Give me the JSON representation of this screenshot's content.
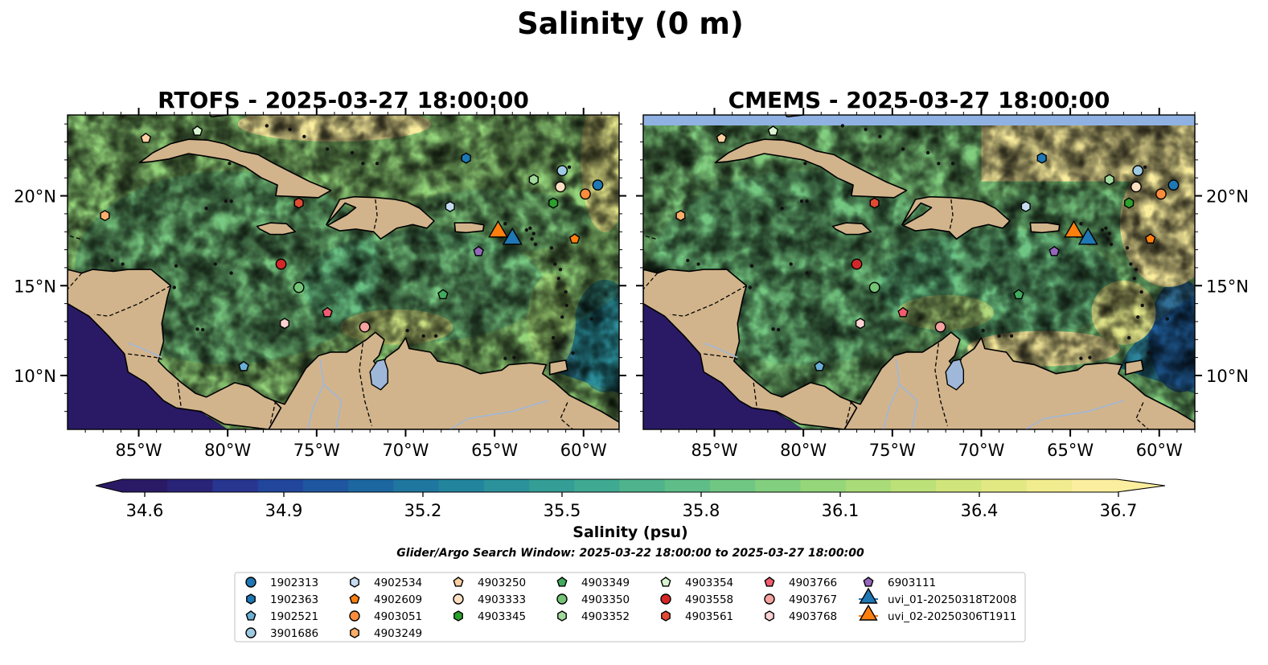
{
  "figure": {
    "title": "Salinity (0 m)",
    "search_window": "Glider/Argo Search Window: 2025-03-22 18:00:00 to 2025-03-27 18:00:00"
  },
  "panels": [
    {
      "title": "RTOFS - 2025-03-27 18:00:00",
      "variant": "rtofs"
    },
    {
      "title": "CMEMS - 2025-03-27 18:00:00",
      "variant": "cmems"
    }
  ],
  "map": {
    "extent": {
      "lon": [
        -89,
        -58
      ],
      "lat": [
        7,
        24.5
      ]
    },
    "lon_ticks": [
      -85,
      -80,
      -75,
      -70,
      -65,
      -60
    ],
    "lon_tick_labels": [
      "85°W",
      "80°W",
      "75°W",
      "70°W",
      "65°W",
      "60°W"
    ],
    "lat_ticks": [
      10,
      15,
      20
    ],
    "lat_tick_labels": [
      "10°N",
      "15°N",
      "20°N"
    ],
    "land_color": "#d2b48c",
    "water_feature_color": "#9fb7d9",
    "no_data_color": "#8fb2e3"
  },
  "colorbar": {
    "label": "Salinity (psu)",
    "min": 34.6,
    "max": 36.7,
    "ticks": [
      "34.6",
      "34.9",
      "35.2",
      "35.5",
      "35.8",
      "36.1",
      "36.4",
      "36.7"
    ],
    "colors": [
      "#2a1a66",
      "#2a2479",
      "#283690",
      "#22469b",
      "#1e579f",
      "#1d67a0",
      "#1f769f",
      "#23849d",
      "#2b919a",
      "#349d96",
      "#40a992",
      "#4fb38d",
      "#5fbd88",
      "#70c683",
      "#82cf7f",
      "#95d67b",
      "#a9dc79",
      "#bde179",
      "#d0e57c",
      "#e2e983",
      "#f1ec8e",
      "#fbee9e"
    ]
  },
  "legend": {
    "items": [
      {
        "label": "1902313",
        "marker": "circle",
        "color": "#1f77b4"
      },
      {
        "label": "1902363",
        "marker": "hexagon",
        "color": "#1f77b4"
      },
      {
        "label": "1902521",
        "marker": "pentagon",
        "color": "#6baed6"
      },
      {
        "label": "3901686",
        "marker": "circle",
        "color": "#9ecae1"
      },
      {
        "label": "4902534",
        "marker": "hexagon",
        "color": "#c6dbef"
      },
      {
        "label": "4902609",
        "marker": "pentagon",
        "color": "#fd7f0e"
      },
      {
        "label": "4903051",
        "marker": "circle",
        "color": "#fd8d3c"
      },
      {
        "label": "4903249",
        "marker": "hexagon",
        "color": "#fdae6b"
      },
      {
        "label": "4903250",
        "marker": "pentagon",
        "color": "#fdd0a2"
      },
      {
        "label": "4903333",
        "marker": "circle",
        "color": "#fde0c2"
      },
      {
        "label": "4903345",
        "marker": "hexagon",
        "color": "#2ca02c"
      },
      {
        "label": "4903349",
        "marker": "pentagon",
        "color": "#41ab5d"
      },
      {
        "label": "4903350",
        "marker": "circle",
        "color": "#74c476"
      },
      {
        "label": "4903352",
        "marker": "hexagon",
        "color": "#a1d99b"
      },
      {
        "label": "4903354",
        "marker": "pentagon",
        "color": "#d9f5d0"
      },
      {
        "label": "4903558",
        "marker": "circle",
        "color": "#d62728"
      },
      {
        "label": "4903561",
        "marker": "hexagon",
        "color": "#e34a33"
      },
      {
        "label": "4903766",
        "marker": "pentagon",
        "color": "#f15c6e"
      },
      {
        "label": "4903767",
        "marker": "circle",
        "color": "#f4a3a0"
      },
      {
        "label": "4903768",
        "marker": "hexagon",
        "color": "#fbd3d3"
      },
      {
        "label": "6903111",
        "marker": "pentagon",
        "color": "#9467bd"
      },
      {
        "label": "uvi_01-20250318T2008",
        "marker": "triangle",
        "color": "#1f77b4"
      },
      {
        "label": "uvi_02-20250306T1911",
        "marker": "triangle",
        "color": "#ff7f0e"
      }
    ]
  },
  "observations": [
    {
      "id": "1902313",
      "lon": -59.2,
      "lat": 20.6
    },
    {
      "id": "1902363",
      "lon": -66.6,
      "lat": 22.1
    },
    {
      "id": "1902521",
      "lon": -79.1,
      "lat": 10.5
    },
    {
      "id": "3901686",
      "lon": -61.2,
      "lat": 21.4
    },
    {
      "id": "4902534",
      "lon": -67.5,
      "lat": 19.4
    },
    {
      "id": "4902609",
      "lon": -60.5,
      "lat": 17.6
    },
    {
      "id": "4903051",
      "lon": -59.9,
      "lat": 20.1
    },
    {
      "id": "4903249",
      "lon": -86.9,
      "lat": 18.9
    },
    {
      "id": "4903250",
      "lon": -84.6,
      "lat": 23.2
    },
    {
      "id": "4903333",
      "lon": -61.3,
      "lat": 20.5
    },
    {
      "id": "4903345",
      "lon": -61.7,
      "lat": 19.6
    },
    {
      "id": "4903349",
      "lon": -67.9,
      "lat": 14.5
    },
    {
      "id": "4903350",
      "lon": -76.0,
      "lat": 14.9
    },
    {
      "id": "4903352",
      "lon": -62.8,
      "lat": 20.9
    },
    {
      "id": "4903354",
      "lon": -81.7,
      "lat": 23.6
    },
    {
      "id": "4903558",
      "lon": -77.0,
      "lat": 16.2
    },
    {
      "id": "4903561",
      "lon": -76.0,
      "lat": 19.6
    },
    {
      "id": "4903766",
      "lon": -74.4,
      "lat": 13.5
    },
    {
      "id": "4903767",
      "lon": -72.3,
      "lat": 12.7
    },
    {
      "id": "4903768",
      "lon": -76.8,
      "lat": 12.9
    },
    {
      "id": "6903111",
      "lon": -65.9,
      "lat": 16.9
    }
  ],
  "gliders": [
    {
      "id": "uvi_01-20250318T2008",
      "lon": -64.0,
      "lat": 17.6
    },
    {
      "id": "uvi_02-20250306T1911",
      "lon": -64.8,
      "lat": 18.0
    }
  ]
}
